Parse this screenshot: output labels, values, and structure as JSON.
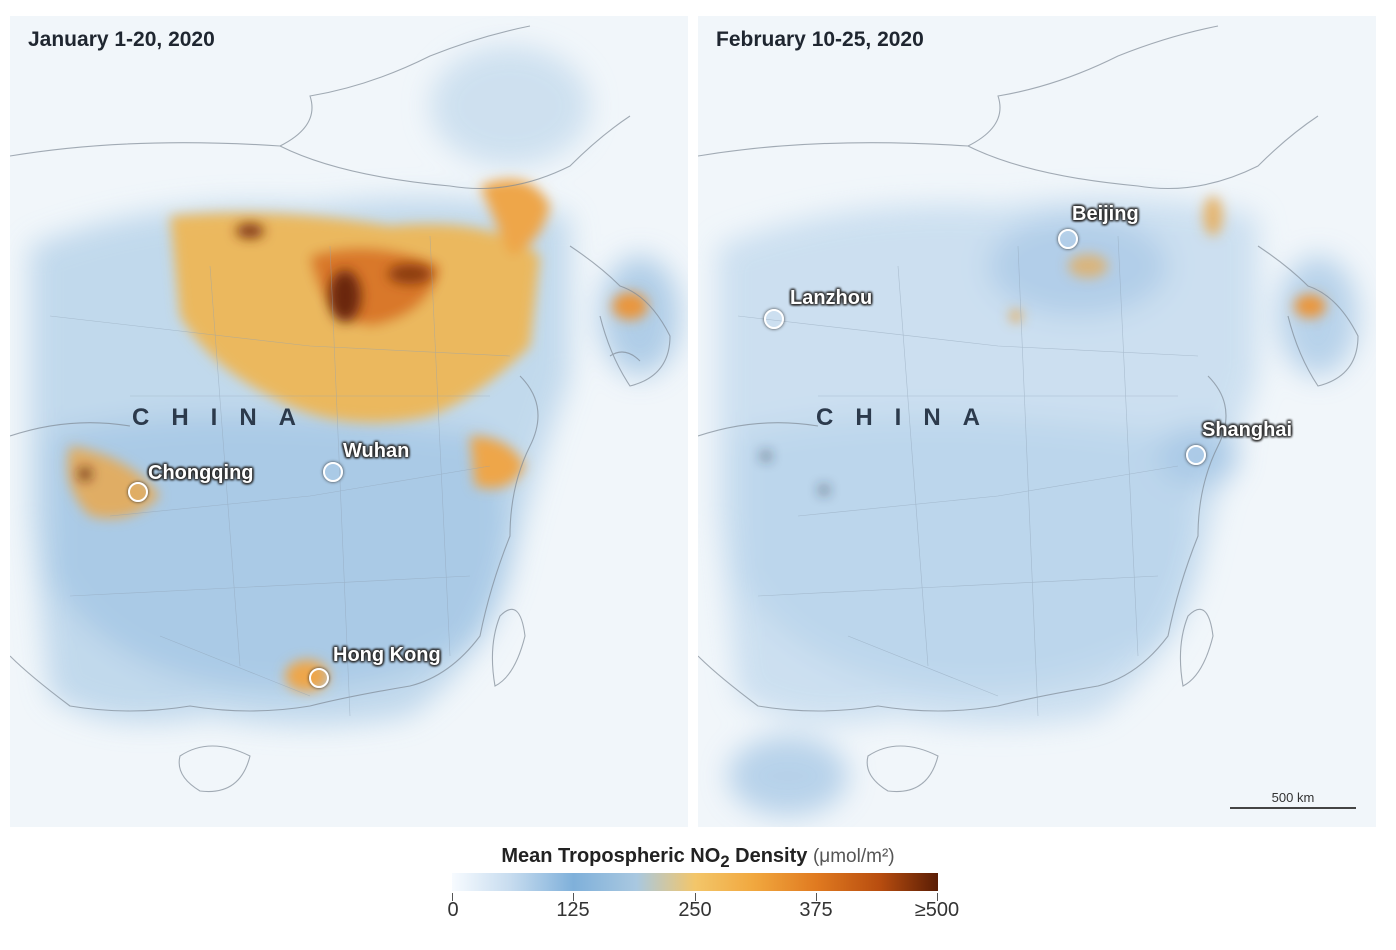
{
  "panels": [
    {
      "title": "January 1-20, 2020",
      "country": "CHINA",
      "cities": [
        {
          "name": "Chongqing"
        },
        {
          "name": "Wuhan"
        },
        {
          "name": "Hong Kong"
        }
      ]
    },
    {
      "title": "February 10-25, 2020",
      "country": "CHINA",
      "cities": [
        {
          "name": "Beijing"
        },
        {
          "name": "Lanzhou"
        },
        {
          "name": "Shanghai"
        }
      ],
      "scale_label": "500 km"
    }
  ],
  "legend": {
    "title_main": "Mean Tropospheric NO",
    "title_sub": "2",
    "title_rest": " Density",
    "unit": "(μmol/m²)",
    "ticks": [
      "0",
      "125",
      "250",
      "375",
      "≥500"
    ],
    "colors": [
      "#f7fbff",
      "#7fb0da",
      "#f3c66a",
      "#e07a20",
      "#5a1d05"
    ]
  }
}
